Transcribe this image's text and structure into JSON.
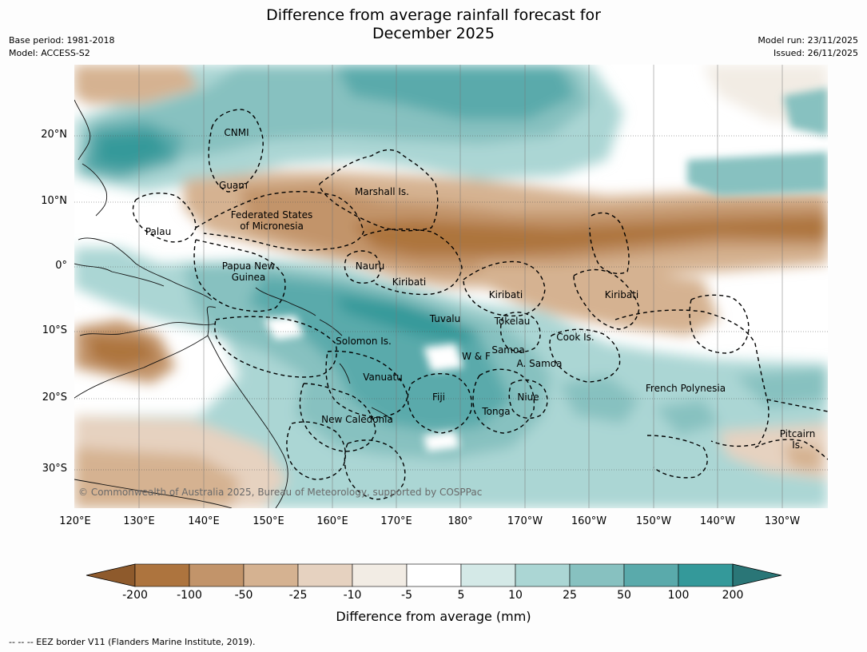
{
  "header": {
    "title_line1": "Difference from average rainfall forecast for",
    "title_line2": "December 2025",
    "base_period": "Base period: 1981-2018",
    "model": "Model: ACCESS-S2",
    "model_run": "Model run: 23/11/2025",
    "issued": "Issued: 26/11/2025"
  },
  "map": {
    "lat_labels": [
      "20°N",
      "10°N",
      "0°",
      "10°S",
      "20°S",
      "30°S"
    ],
    "lon_labels": [
      "120°E",
      "130°E",
      "140°E",
      "150°E",
      "160°E",
      "170°E",
      "180°",
      "170°W",
      "160°W",
      "150°W",
      "140°W",
      "130°W"
    ],
    "regions": {
      "cnmi": "CNMI",
      "guam": "Guam",
      "marshall": "Marshall Is.",
      "fsm_1": "Federated States",
      "fsm_2": "of Micronesia",
      "palau": "Palau",
      "png_1": "Papua New",
      "png_2": "Guinea",
      "nauru": "Nauru",
      "kiribati_west": "Kiribati",
      "kiribati_central": "Kiribati",
      "kiribati_east": "Kiribati",
      "tuvalu": "Tuvalu",
      "tokelau": "Tokelau",
      "cook": "Cook Is.",
      "solomon": "Solomon Is.",
      "wf": "W & F",
      "samoa": "Samoa",
      "american_samoa": "A. Samoa",
      "vanuatu": "Vanuatu",
      "fiji": "Fiji",
      "niue": "Niue",
      "french_polynesia": "French Polynesia",
      "tonga": "Tonga",
      "new_caledonia": "New Caledonia",
      "pitcairn_1": "Pitcairn",
      "pitcairn_2": "Is."
    },
    "copyright": "© Commonwealth of Australia 2025, Bureau of Meteorology, supported by COSPPac"
  },
  "colorbar": {
    "ticks": [
      "-200",
      "-100",
      "-50",
      "-25",
      "-10",
      "-5",
      "5",
      "10",
      "25",
      "50",
      "100",
      "200"
    ],
    "colors": [
      "#8e5a2c",
      "#ad743e",
      "#c2946a",
      "#d5b291",
      "#e6d2c0",
      "#f2ece4",
      "#ffffff",
      "#d4e9e7",
      "#abd6d4",
      "#87c1c0",
      "#5aaaab",
      "#34999a",
      "#2a7677"
    ],
    "label": "Difference from average (mm)"
  },
  "footnote": "--  --  -- EEZ border V11 (Flanders Marine Institute, 2019)."
}
